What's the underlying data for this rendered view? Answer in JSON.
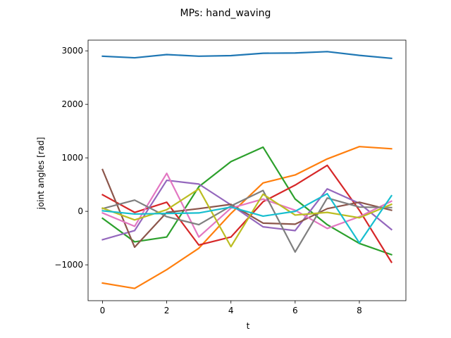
{
  "chart_data": {
    "type": "line",
    "title": "MPs: hand_waving",
    "xlabel": "t",
    "ylabel": "joint angles [rad]",
    "x": [
      0,
      1,
      2,
      3,
      4,
      5,
      6,
      7,
      8,
      9
    ],
    "xlim": [
      -0.45,
      9.45
    ],
    "ylim": [
      -1670,
      3200
    ],
    "xticks": [
      0,
      2,
      4,
      6,
      8
    ],
    "yticks": [
      -1000,
      0,
      1000,
      2000,
      3000
    ],
    "grid": false,
    "series": [
      {
        "color": "#1f77b4",
        "values": [
          2900,
          2870,
          2930,
          2900,
          2910,
          2955,
          2960,
          2985,
          2915,
          2860
        ]
      },
      {
        "color": "#ff7f0e",
        "values": [
          -1340,
          -1440,
          -1090,
          -690,
          -40,
          530,
          680,
          980,
          1210,
          1170
        ]
      },
      {
        "color": "#2ca02c",
        "values": [
          -130,
          -570,
          -480,
          460,
          930,
          1200,
          230,
          -250,
          -600,
          -810
        ]
      },
      {
        "color": "#d62728",
        "values": [
          310,
          -20,
          170,
          -630,
          -480,
          180,
          490,
          860,
          20,
          -950
        ]
      },
      {
        "color": "#9467bd",
        "values": [
          -530,
          -360,
          580,
          510,
          120,
          -290,
          -360,
          420,
          150,
          -340
        ]
      },
      {
        "color": "#8c564b",
        "values": [
          780,
          -670,
          -20,
          50,
          130,
          -220,
          -240,
          50,
          170,
          20
        ]
      },
      {
        "color": "#e377c2",
        "values": [
          -30,
          -280,
          710,
          -480,
          60,
          230,
          20,
          -320,
          -100,
          190
        ]
      },
      {
        "color": "#7f7f7f",
        "values": [
          50,
          210,
          -100,
          -250,
          100,
          390,
          -760,
          250,
          80,
          70
        ]
      },
      {
        "color": "#bcbd22",
        "values": [
          60,
          -160,
          30,
          420,
          -660,
          320,
          -70,
          -20,
          -120,
          130
        ]
      },
      {
        "color": "#17becf",
        "values": [
          10,
          -50,
          -40,
          -30,
          80,
          -90,
          0,
          330,
          -590,
          290
        ]
      }
    ]
  }
}
